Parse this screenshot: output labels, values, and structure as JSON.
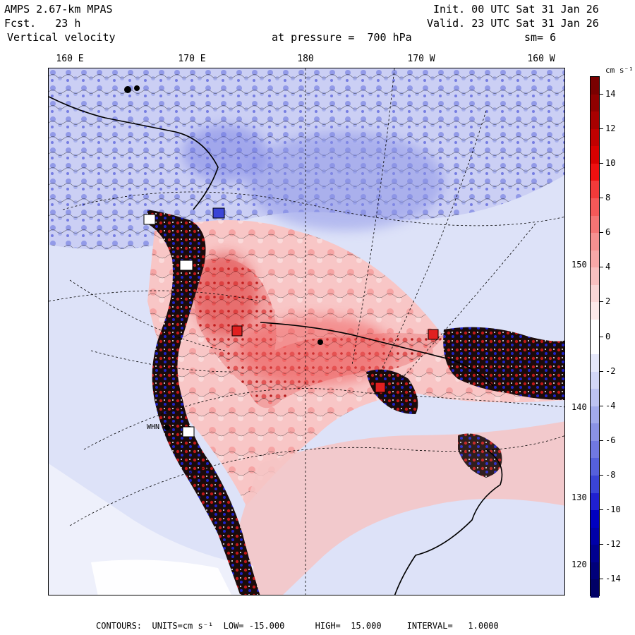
{
  "header": {
    "model": "AMPS 2.67-km MPAS",
    "forecast": "Fcst.   23 h",
    "field": "Vertical velocity",
    "init": "Init. 00 UTC Sat 31 Jan 26",
    "valid": "Valid. 23 UTC Sat 31 Jan 26",
    "level": "at pressure =  700 hPa",
    "smoothing": "sm= 6"
  },
  "lon_labels": [
    "160 E",
    "170 E",
    "180",
    "170 W",
    "160 W"
  ],
  "lat_labels": [
    "150 W",
    "140 W",
    "130 W",
    "120 W"
  ],
  "station_labels": [
    "WHN"
  ],
  "colorbar": {
    "units": "cm s⁻¹",
    "ticks": [
      "14",
      "12",
      "10",
      "8",
      "6",
      "4",
      "2",
      "0",
      "-2",
      "-4",
      "-6",
      "-8",
      "-10",
      "-12",
      "-14"
    ],
    "colors": [
      "#7a0000",
      "#900000",
      "#a80000",
      "#c00000",
      "#d80000",
      "#ee1010",
      "#f23a3a",
      "#f45858",
      "#f47474",
      "#f69090",
      "#f7a8a8",
      "#f8c0c0",
      "#f9d6d6",
      "#fbe8e8",
      "#ffffff",
      "#ffffff",
      "#e6e8fa",
      "#d2d6f6",
      "#bcc2f2",
      "#a2aaec",
      "#8a92e6",
      "#7078e2",
      "#5560dc",
      "#3a44d6",
      "#2020d0",
      "#0000c0",
      "#0000a8",
      "#000090",
      "#00007a",
      "#000066"
    ]
  },
  "footer": "CONTOURS:  UNITS=cm s⁻¹  LOW= -15.000      HIGH=  15.000     INTERVAL=   1.0000"
}
